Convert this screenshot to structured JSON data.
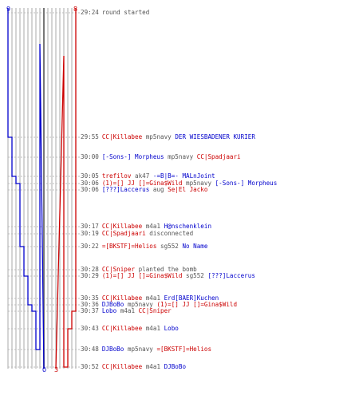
{
  "colors": {
    "team_a": "#0000cc",
    "team_b": "#cc0000",
    "neutral": "#555555",
    "grid": "#aaaaaa",
    "center": "#777777"
  },
  "score": {
    "top_left": "9",
    "top_right": "8",
    "bottom_left": "0",
    "bottom_right": "3"
  },
  "chart_data": {
    "type": "line",
    "title": "",
    "series": [
      {
        "values": [
          9,
          9,
          8,
          8,
          7,
          6,
          6,
          6,
          6,
          5,
          5,
          4,
          4,
          3,
          2,
          2,
          1,
          1,
          0
        ]
      },
      {
        "values": [
          8,
          8,
          8,
          8,
          8,
          8,
          8,
          8,
          8,
          8,
          8,
          8,
          8,
          8,
          7,
          6,
          6,
          5,
          3
        ]
      }
    ],
    "grid": true
  },
  "events": [
    {
      "time": "29:24",
      "parts": [
        {
          "text": "round started",
          "color": "neutral"
        }
      ]
    },
    {
      "time": "29:55",
      "parts": [
        {
          "text": "CC|Killabee",
          "color": "team_b"
        },
        {
          "text": " mp5navy ",
          "color": "neutral"
        },
        {
          "text": "DER WIESBADENER KURIER",
          "color": "team_a"
        }
      ]
    },
    {
      "time": "30:00",
      "parts": [
        {
          "text": "[-Sons-] Morpheus",
          "color": "team_a"
        },
        {
          "text": " mp5navy ",
          "color": "neutral"
        },
        {
          "text": "CC|Spadjaari",
          "color": "team_b"
        }
      ]
    },
    {
      "time": "30:05",
      "parts": [
        {
          "text": "trefilov",
          "color": "team_b"
        },
        {
          "text": " ak47 ",
          "color": "neutral"
        },
        {
          "text": "-=B|B=- MALnJoint",
          "color": "team_a"
        }
      ]
    },
    {
      "time": "30:06",
      "parts": [
        {
          "text": "(1)=[] JJ []=Gina$Wild",
          "color": "team_b"
        },
        {
          "text": " mp5navy ",
          "color": "neutral"
        },
        {
          "text": "[-Sons-] Morpheus",
          "color": "team_a"
        }
      ]
    },
    {
      "time": "30:06",
      "parts": [
        {
          "text": "[???]Laccerus",
          "color": "team_a"
        },
        {
          "text": " aug ",
          "color": "neutral"
        },
        {
          "text": "Se|El Jacko",
          "color": "team_b"
        }
      ]
    },
    {
      "time": "30:17",
      "parts": [
        {
          "text": "CC|Killabee",
          "color": "team_b"
        },
        {
          "text": " m4a1 ",
          "color": "neutral"
        },
        {
          "text": "H@nschenklein",
          "color": "team_a"
        }
      ]
    },
    {
      "time": "30:19",
      "parts": [
        {
          "text": "CC|Spadjaari",
          "color": "team_b"
        },
        {
          "text": " disconnected",
          "color": "neutral"
        }
      ]
    },
    {
      "time": "30:22",
      "parts": [
        {
          "text": "=[BKSTF]=Helios",
          "color": "team_b"
        },
        {
          "text": " sg552 ",
          "color": "neutral"
        },
        {
          "text": "No Name",
          "color": "team_a"
        }
      ]
    },
    {
      "time": "30:28",
      "parts": [
        {
          "text": "CC|Sniper",
          "color": "team_b"
        },
        {
          "text": " planted the bomb",
          "color": "neutral"
        }
      ]
    },
    {
      "time": "30:29",
      "parts": [
        {
          "text": "(1)=[] JJ []=Gina$Wild",
          "color": "team_b"
        },
        {
          "text": " sg552 ",
          "color": "neutral"
        },
        {
          "text": "[???]Laccerus",
          "color": "team_a"
        }
      ]
    },
    {
      "time": "30:35",
      "parts": [
        {
          "text": "CC|Killabee",
          "color": "team_b"
        },
        {
          "text": " m4a1 ",
          "color": "neutral"
        },
        {
          "text": "Erd[BAER]Kuchen",
          "color": "team_a"
        }
      ]
    },
    {
      "time": "30:36",
      "parts": [
        {
          "text": "DJBoBo",
          "color": "team_a"
        },
        {
          "text": " mp5navy ",
          "color": "neutral"
        },
        {
          "text": "(1)=[] JJ []=Gina$Wild",
          "color": "team_b"
        }
      ]
    },
    {
      "time": "30:37",
      "parts": [
        {
          "text": "Lobo",
          "color": "team_a"
        },
        {
          "text": " m4a1 ",
          "color": "neutral"
        },
        {
          "text": "CC|Sniper",
          "color": "team_b"
        }
      ]
    },
    {
      "time": "30:43",
      "parts": [
        {
          "text": "CC|Killabee",
          "color": "team_b"
        },
        {
          "text": " m4a1 ",
          "color": "neutral"
        },
        {
          "text": "Lobo",
          "color": "team_a"
        }
      ]
    },
    {
      "time": "30:48",
      "parts": [
        {
          "text": "DJBoBo",
          "color": "team_a"
        },
        {
          "text": " mp5navy ",
          "color": "neutral"
        },
        {
          "text": "=[BKSTF]=Helios",
          "color": "team_b"
        }
      ]
    },
    {
      "time": "30:52",
      "parts": [
        {
          "text": "CC|Killabee",
          "color": "team_b"
        },
        {
          "text": " m4a1 ",
          "color": "neutral"
        },
        {
          "text": "DJBoBo",
          "color": "team_a"
        }
      ]
    }
  ]
}
